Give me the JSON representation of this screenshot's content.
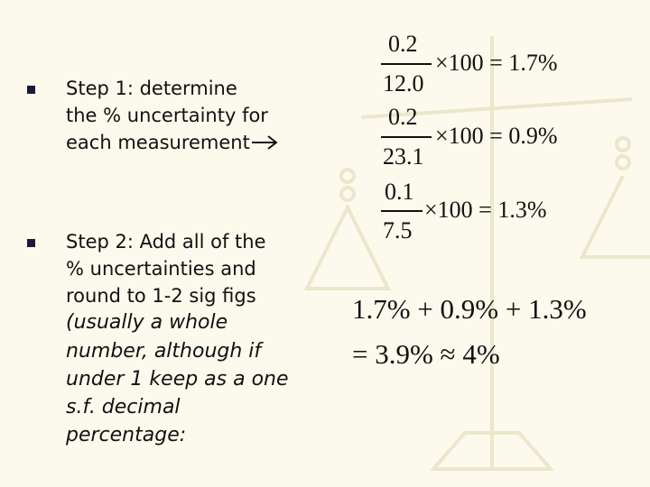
{
  "bullets": [
    {
      "lines": [
        "Step 1:  determine",
        "the % uncertainty for",
        "each measurement"
      ]
    },
    {
      "lines": [
        "Step 2:  Add all of the",
        "% uncertainties and",
        "round to 1-2 sig figs"
      ],
      "italic_lines": [
        "(usually a whole",
        "number, although if",
        "under 1 keep as a one",
        "s.f. decimal",
        "percentage:"
      ]
    }
  ],
  "equations": [
    {
      "numerator": "0.2",
      "denominator": "12.0",
      "rest": "×100 = 1.7%"
    },
    {
      "numerator": "0.2",
      "denominator": "23.1",
      "rest": "×100 = 0.9%"
    },
    {
      "numerator": "0.1",
      "denominator": "7.5",
      "rest": "×100 = 1.3%"
    }
  ],
  "sum": {
    "line1": "1.7% + 0.9% + 1.3%",
    "line2": "= 3.9% ≈ 4%"
  }
}
